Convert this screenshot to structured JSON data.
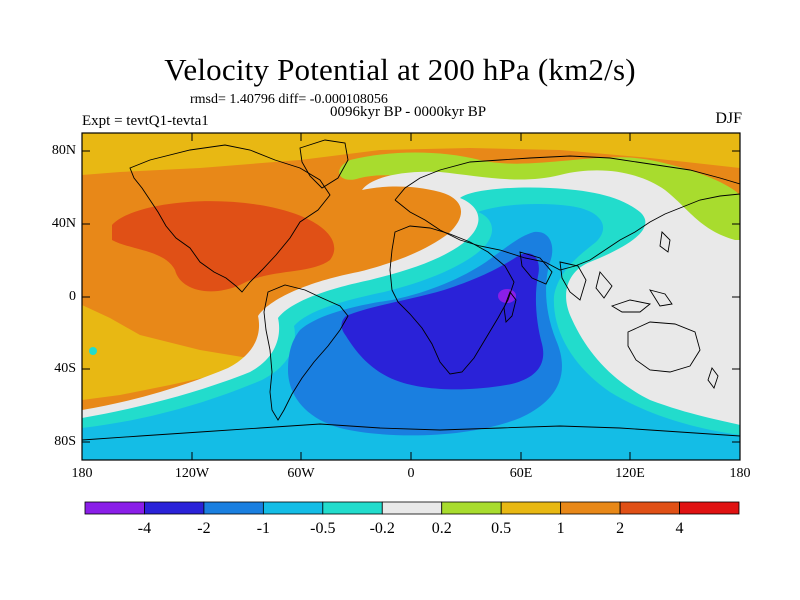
{
  "header": {
    "title": "Velocity Potential at 200 hPa (km2/s)",
    "stats": "rmsd= 1.40796 diff= -0.000108056",
    "experiment": "Expt = tevtQ1-tevta1",
    "period": "0096kyr BP - 0000kyr BP",
    "season": "DJF"
  },
  "axes": {
    "lat_ticks": [
      "80N",
      "40N",
      "0",
      "40S",
      "80S"
    ],
    "lon_ticks": [
      "180",
      "120W",
      "60W",
      "0",
      "60E",
      "120E",
      "180"
    ]
  },
  "colorbar": {
    "labels": [
      "-4",
      "-2",
      "-1",
      "-0.5",
      "-0.2",
      "0.2",
      "0.5",
      "1",
      "2",
      "4"
    ],
    "colors": [
      "#8a1ee8",
      "#2a22d8",
      "#1a7fe0",
      "#14bde6",
      "#22dccc",
      "#e9e9e9",
      "#a8dc2e",
      "#e8b813",
      "#e88818",
      "#e05016",
      "#e01212"
    ]
  }
}
